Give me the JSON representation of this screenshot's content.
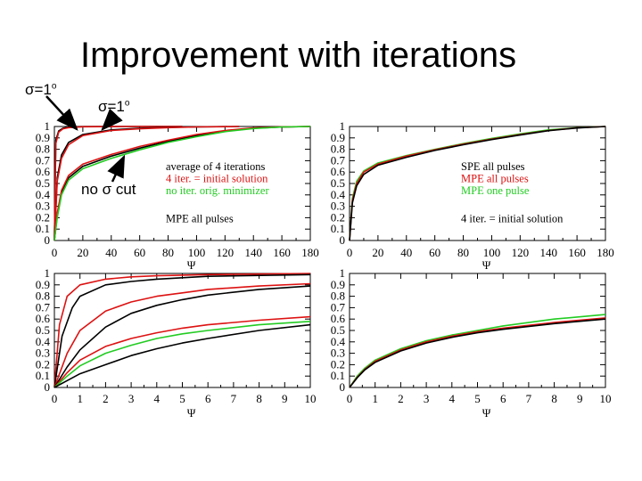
{
  "slide": {
    "title": "Improvement with iterations",
    "annotations": {
      "sigma_left": "σ=1",
      "sigma_left_deg": "o",
      "sigma_mid": "σ=1",
      "sigma_mid_deg": "o",
      "no_sigma_cut": "no σ cut"
    }
  },
  "colors": {
    "black": "#000000",
    "red": "#dd1111",
    "green": "#22cc22"
  },
  "chart_data": [
    {
      "type": "line",
      "panel": "top-left",
      "xlabel": "Ψ",
      "xlim": [
        0,
        180
      ],
      "ylim": [
        0,
        1
      ],
      "xticks": [
        0,
        20,
        40,
        60,
        80,
        100,
        120,
        140,
        160,
        180
      ],
      "yticks": [
        0,
        0.1,
        0.2,
        0.3,
        0.4,
        0.5,
        0.6,
        0.7,
        0.8,
        0.9,
        1
      ],
      "legend": [
        {
          "text": "average of 4 iterations",
          "color": "#000000"
        },
        {
          "text": "4 iter. = initial solution",
          "color": "#dd1111"
        },
        {
          "text": "no iter. orig. minimizer",
          "color": "#22cc22"
        },
        {
          "text": "MPE all pulses",
          "color": "#000000"
        }
      ],
      "series": [
        {
          "color": "#000000",
          "points": [
            [
              0,
              0
            ],
            [
              1,
              0.88
            ],
            [
              3,
              0.96
            ],
            [
              6,
              0.985
            ],
            [
              10,
              0.995
            ],
            [
              20,
              1
            ],
            [
              90,
              1
            ]
          ]
        },
        {
          "color": "#dd1111",
          "points": [
            [
              0,
              0
            ],
            [
              1,
              0.85
            ],
            [
              3,
              0.95
            ],
            [
              6,
              0.98
            ],
            [
              10,
              0.99
            ],
            [
              20,
              0.998
            ],
            [
              50,
              1
            ],
            [
              90,
              1
            ]
          ]
        },
        {
          "color": "#000000",
          "points": [
            [
              0,
              0
            ],
            [
              2,
              0.55
            ],
            [
              5,
              0.75
            ],
            [
              10,
              0.86
            ],
            [
              20,
              0.93
            ],
            [
              40,
              0.97
            ],
            [
              60,
              0.985
            ],
            [
              80,
              0.993
            ],
            [
              100,
              0.997
            ],
            [
              130,
              1
            ]
          ]
        },
        {
          "color": "#dd1111",
          "points": [
            [
              0,
              0
            ],
            [
              2,
              0.52
            ],
            [
              5,
              0.72
            ],
            [
              10,
              0.84
            ],
            [
              20,
              0.92
            ],
            [
              40,
              0.965
            ],
            [
              60,
              0.98
            ],
            [
              80,
              0.99
            ],
            [
              100,
              0.996
            ],
            [
              130,
              1
            ]
          ]
        },
        {
          "color": "#000000",
          "points": [
            [
              0,
              0
            ],
            [
              2,
              0.22
            ],
            [
              5,
              0.42
            ],
            [
              10,
              0.55
            ],
            [
              20,
              0.65
            ],
            [
              40,
              0.74
            ],
            [
              60,
              0.81
            ],
            [
              80,
              0.87
            ],
            [
              100,
              0.92
            ],
            [
              120,
              0.96
            ],
            [
              140,
              0.985
            ],
            [
              160,
              0.995
            ],
            [
              180,
              1
            ]
          ]
        },
        {
          "color": "#dd1111",
          "points": [
            [
              0,
              0
            ],
            [
              2,
              0.24
            ],
            [
              5,
              0.44
            ],
            [
              10,
              0.57
            ],
            [
              20,
              0.67
            ],
            [
              40,
              0.755
            ],
            [
              60,
              0.825
            ],
            [
              80,
              0.88
            ],
            [
              100,
              0.93
            ],
            [
              120,
              0.965
            ],
            [
              140,
              0.988
            ],
            [
              160,
              0.997
            ],
            [
              180,
              1
            ]
          ]
        },
        {
          "color": "#22cc22",
          "points": [
            [
              0,
              0
            ],
            [
              2,
              0.2
            ],
            [
              5,
              0.4
            ],
            [
              10,
              0.53
            ],
            [
              20,
              0.63
            ],
            [
              40,
              0.72
            ],
            [
              60,
              0.795
            ],
            [
              80,
              0.86
            ],
            [
              100,
              0.91
            ],
            [
              120,
              0.955
            ],
            [
              140,
              0.982
            ],
            [
              160,
              0.995
            ],
            [
              180,
              1
            ]
          ]
        }
      ]
    },
    {
      "type": "line",
      "panel": "top-right",
      "xlabel": "Ψ",
      "xlim": [
        0,
        180
      ],
      "ylim": [
        0,
        1
      ],
      "xticks": [
        0,
        20,
        40,
        60,
        80,
        100,
        120,
        140,
        160,
        180
      ],
      "yticks": [
        0,
        0.1,
        0.2,
        0.3,
        0.4,
        0.5,
        0.6,
        0.7,
        0.8,
        0.9,
        1
      ],
      "legend": [
        {
          "text": "SPE all pulses",
          "color": "#000000"
        },
        {
          "text": "MPE all pulses",
          "color": "#dd1111"
        },
        {
          "text": "MPE one pulse",
          "color": "#22cc22"
        },
        {
          "text": "4 iter. = initial solution",
          "color": "#000000"
        }
      ],
      "series": [
        {
          "color": "#22cc22",
          "points": [
            [
              0,
              0
            ],
            [
              2,
              0.37
            ],
            [
              5,
              0.52
            ],
            [
              10,
              0.61
            ],
            [
              20,
              0.68
            ],
            [
              40,
              0.745
            ],
            [
              60,
              0.8
            ],
            [
              80,
              0.85
            ],
            [
              100,
              0.895
            ],
            [
              120,
              0.935
            ],
            [
              140,
              0.97
            ],
            [
              160,
              0.99
            ],
            [
              180,
              1
            ]
          ]
        },
        {
          "color": "#dd1111",
          "points": [
            [
              0,
              0
            ],
            [
              2,
              0.35
            ],
            [
              5,
              0.5
            ],
            [
              10,
              0.6
            ],
            [
              20,
              0.67
            ],
            [
              40,
              0.74
            ],
            [
              60,
              0.795
            ],
            [
              80,
              0.845
            ],
            [
              100,
              0.89
            ],
            [
              120,
              0.93
            ],
            [
              140,
              0.965
            ],
            [
              160,
              0.988
            ],
            [
              180,
              1
            ]
          ]
        },
        {
          "color": "#000000",
          "points": [
            [
              0,
              0
            ],
            [
              2,
              0.33
            ],
            [
              5,
              0.48
            ],
            [
              10,
              0.58
            ],
            [
              20,
              0.66
            ],
            [
              40,
              0.73
            ],
            [
              60,
              0.79
            ],
            [
              80,
              0.84
            ],
            [
              100,
              0.885
            ],
            [
              120,
              0.925
            ],
            [
              140,
              0.963
            ],
            [
              160,
              0.987
            ],
            [
              180,
              1
            ]
          ]
        }
      ]
    },
    {
      "type": "line",
      "panel": "bottom-left",
      "xlabel": "Ψ",
      "xlim": [
        0,
        10
      ],
      "ylim": [
        0,
        1
      ],
      "xticks": [
        0,
        1,
        2,
        3,
        4,
        5,
        6,
        7,
        8,
        9,
        10
      ],
      "yticks": [
        0,
        0.1,
        0.2,
        0.3,
        0.4,
        0.5,
        0.6,
        0.7,
        0.8,
        0.9,
        1
      ],
      "series": [
        {
          "color": "#dd1111",
          "points": [
            [
              0,
              0
            ],
            [
              0.2,
              0.55
            ],
            [
              0.5,
              0.8
            ],
            [
              1,
              0.9
            ],
            [
              2,
              0.95
            ],
            [
              3,
              0.97
            ],
            [
              4,
              0.98
            ],
            [
              6,
              0.99
            ],
            [
              10,
              1
            ]
          ]
        },
        {
          "color": "#000000",
          "points": [
            [
              0,
              0
            ],
            [
              0.3,
              0.45
            ],
            [
              0.7,
              0.7
            ],
            [
              1,
              0.8
            ],
            [
              2,
              0.9
            ],
            [
              3,
              0.93
            ],
            [
              4,
              0.95
            ],
            [
              6,
              0.975
            ],
            [
              10,
              0.99
            ]
          ]
        },
        {
          "color": "#dd1111",
          "points": [
            [
              0,
              0
            ],
            [
              0.5,
              0.3
            ],
            [
              1,
              0.5
            ],
            [
              2,
              0.67
            ],
            [
              3,
              0.75
            ],
            [
              4,
              0.8
            ],
            [
              5,
              0.83
            ],
            [
              6,
              0.86
            ],
            [
              8,
              0.89
            ],
            [
              10,
              0.91
            ]
          ]
        },
        {
          "color": "#000000",
          "points": [
            [
              0,
              0
            ],
            [
              0.5,
              0.18
            ],
            [
              1,
              0.33
            ],
            [
              2,
              0.53
            ],
            [
              3,
              0.65
            ],
            [
              4,
              0.72
            ],
            [
              5,
              0.77
            ],
            [
              6,
              0.81
            ],
            [
              8,
              0.86
            ],
            [
              10,
              0.89
            ]
          ]
        },
        {
          "color": "#dd1111",
          "points": [
            [
              0,
              0
            ],
            [
              0.5,
              0.13
            ],
            [
              1,
              0.24
            ],
            [
              2,
              0.36
            ],
            [
              3,
              0.43
            ],
            [
              4,
              0.48
            ],
            [
              5,
              0.52
            ],
            [
              6,
              0.55
            ],
            [
              8,
              0.59
            ],
            [
              10,
              0.62
            ]
          ]
        },
        {
          "color": "#22cc22",
          "points": [
            [
              0,
              0
            ],
            [
              0.5,
              0.1
            ],
            [
              1,
              0.19
            ],
            [
              2,
              0.3
            ],
            [
              3,
              0.37
            ],
            [
              4,
              0.43
            ],
            [
              5,
              0.47
            ],
            [
              6,
              0.5
            ],
            [
              8,
              0.55
            ],
            [
              10,
              0.58
            ]
          ]
        },
        {
          "color": "#000000",
          "points": [
            [
              0,
              0
            ],
            [
              0.5,
              0.06
            ],
            [
              1,
              0.12
            ],
            [
              2,
              0.2
            ],
            [
              3,
              0.28
            ],
            [
              4,
              0.34
            ],
            [
              5,
              0.39
            ],
            [
              6,
              0.43
            ],
            [
              8,
              0.5
            ],
            [
              10,
              0.55
            ]
          ]
        }
      ]
    },
    {
      "type": "line",
      "panel": "bottom-right",
      "xlabel": "Ψ",
      "xlim": [
        0,
        10
      ],
      "ylim": [
        0,
        1
      ],
      "xticks": [
        0,
        1,
        2,
        3,
        4,
        5,
        6,
        7,
        8,
        9,
        10
      ],
      "yticks": [
        0,
        0.1,
        0.2,
        0.3,
        0.4,
        0.5,
        0.6,
        0.7,
        0.8,
        0.9,
        1
      ],
      "series": [
        {
          "color": "#22cc22",
          "points": [
            [
              0,
              0
            ],
            [
              0.3,
              0.1
            ],
            [
              0.6,
              0.17
            ],
            [
              1,
              0.24
            ],
            [
              2,
              0.34
            ],
            [
              3,
              0.41
            ],
            [
              4,
              0.46
            ],
            [
              5,
              0.5
            ],
            [
              6,
              0.54
            ],
            [
              8,
              0.6
            ],
            [
              10,
              0.64
            ]
          ]
        },
        {
          "color": "#dd1111",
          "points": [
            [
              0,
              0
            ],
            [
              0.3,
              0.09
            ],
            [
              0.6,
              0.16
            ],
            [
              1,
              0.23
            ],
            [
              2,
              0.33
            ],
            [
              3,
              0.4
            ],
            [
              4,
              0.45
            ],
            [
              5,
              0.49
            ],
            [
              6,
              0.52
            ],
            [
              8,
              0.57
            ],
            [
              10,
              0.61
            ]
          ]
        },
        {
          "color": "#000000",
          "points": [
            [
              0,
              0
            ],
            [
              0.3,
              0.085
            ],
            [
              0.6,
              0.155
            ],
            [
              1,
              0.22
            ],
            [
              2,
              0.32
            ],
            [
              3,
              0.39
            ],
            [
              4,
              0.44
            ],
            [
              5,
              0.48
            ],
            [
              6,
              0.51
            ],
            [
              8,
              0.56
            ],
            [
              10,
              0.6
            ]
          ]
        }
      ]
    }
  ]
}
